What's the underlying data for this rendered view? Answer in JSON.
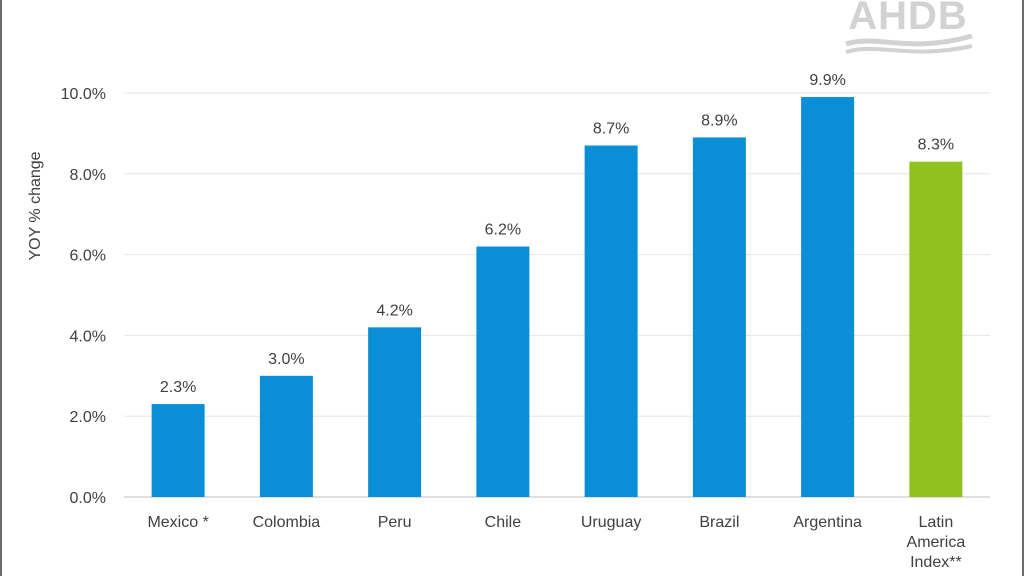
{
  "brand": {
    "logo_text": "AHDB"
  },
  "chart_data": {
    "type": "bar",
    "categories": [
      [
        "Mexico *"
      ],
      [
        "Colombia"
      ],
      [
        "Peru"
      ],
      [
        "Chile"
      ],
      [
        "Uruguay"
      ],
      [
        "Brazil"
      ],
      [
        "Argentina"
      ],
      [
        "Latin",
        "America",
        "Index**"
      ]
    ],
    "values": [
      2.3,
      3.0,
      4.2,
      6.2,
      8.7,
      8.9,
      9.9,
      8.3
    ],
    "value_labels": [
      "2.3%",
      "3.0%",
      "4.2%",
      "6.2%",
      "8.7%",
      "8.9%",
      "9.9%",
      "8.3%"
    ],
    "colors": [
      "#0a8fd6",
      "#0a8fd6",
      "#0a8fd6",
      "#0a8fd6",
      "#0a8fd6",
      "#0a8fd6",
      "#0a8fd6",
      "#8fc21f"
    ],
    "ylabel": "YOY % change",
    "ylim": [
      0,
      10
    ],
    "yticks": [
      0,
      2,
      4,
      6,
      8,
      10
    ],
    "ytick_labels": [
      "0.0%",
      "2.0%",
      "4.0%",
      "6.0%",
      "8.0%",
      "10.0%"
    ],
    "grid": true,
    "legend": "none"
  }
}
